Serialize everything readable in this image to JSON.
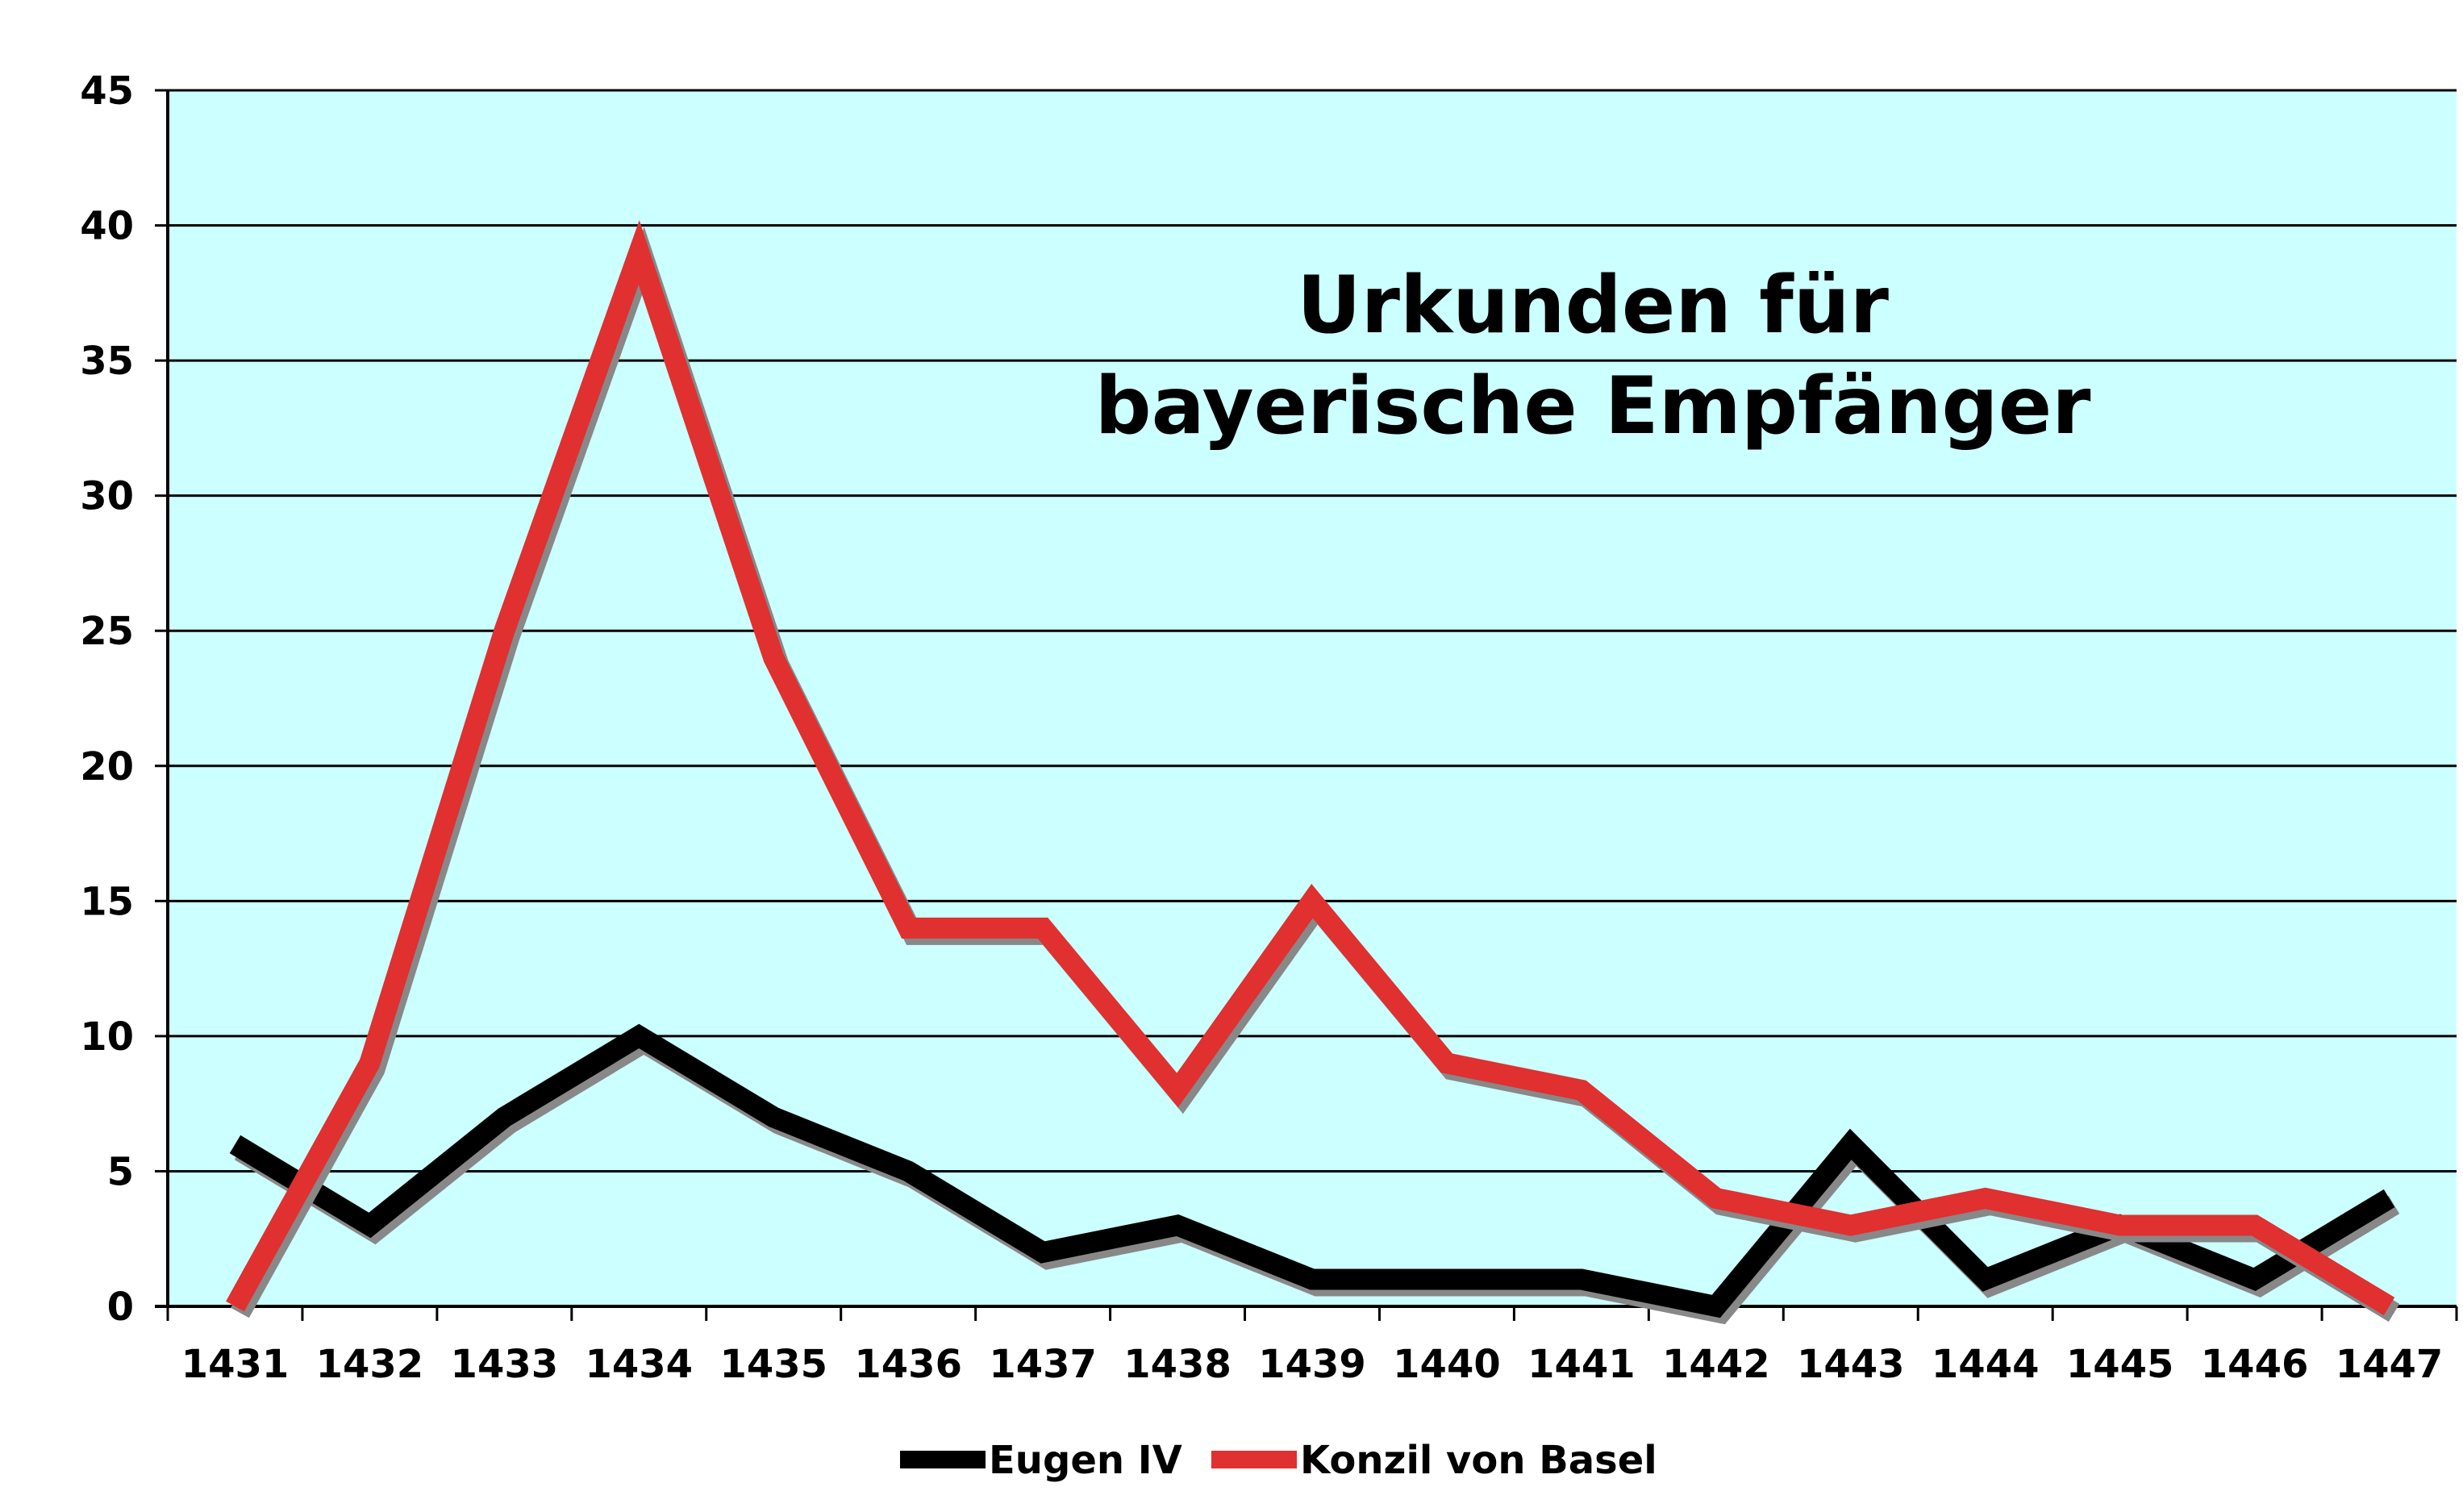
{
  "chart_data": {
    "type": "line",
    "title_lines": [
      "Urkunden für",
      "bayerische Empfänger"
    ],
    "categories": [
      "1431",
      "1432",
      "1433",
      "1434",
      "1435",
      "1436",
      "1437",
      "1438",
      "1439",
      "1440",
      "1441",
      "1442",
      "1443",
      "1444",
      "1445",
      "1446",
      "1447"
    ],
    "series": [
      {
        "name": "Eugen IV",
        "color": "#000000",
        "values": [
          6,
          3,
          7,
          10,
          7,
          5,
          2,
          3,
          1,
          1,
          1,
          0,
          6,
          1,
          3,
          1,
          4
        ]
      },
      {
        "name": "Konzil von Basel",
        "color": "#e03030",
        "values": [
          0,
          9,
          25,
          39,
          24,
          14,
          14,
          8,
          15,
          9,
          8,
          4,
          3,
          4,
          3,
          3,
          0
        ]
      }
    ],
    "y_ticks": [
      "0",
      "5",
      "10",
      "15",
      "20",
      "25",
      "30",
      "35",
      "40",
      "45"
    ],
    "ylim": [
      0,
      45
    ],
    "grid": true,
    "plot_background": "#ccffff",
    "legend_position": "bottom"
  }
}
